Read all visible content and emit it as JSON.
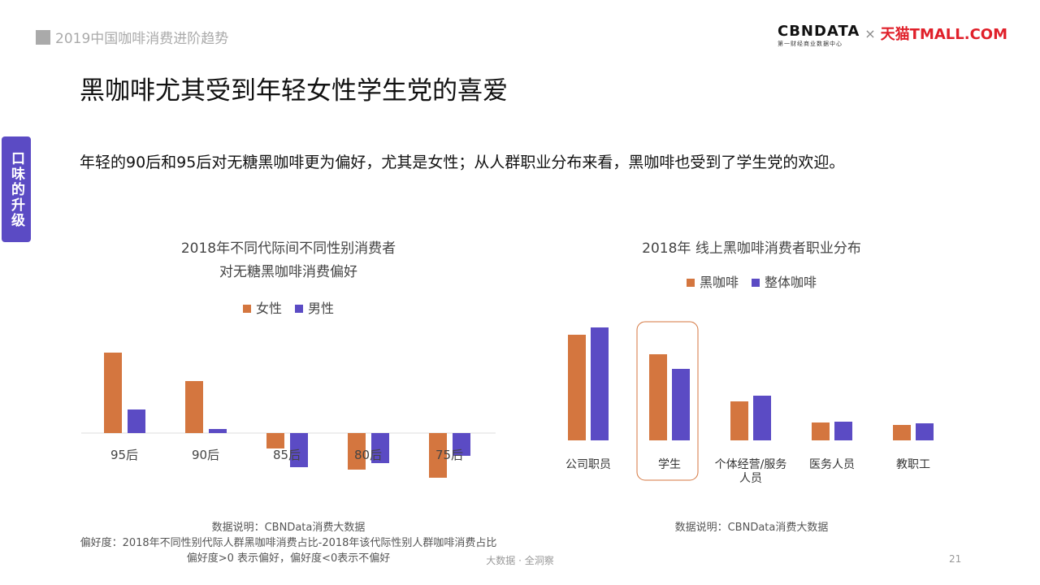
{
  "header": {
    "section": "2019中国咖啡消费进阶趋势",
    "logo_cbn": "CBNDATA",
    "logo_cbn_sub": "第一财经商业数据中心",
    "logo_x": "×",
    "logo_tmall": "天猫TMALL.COM"
  },
  "side_tab": "口味的升级",
  "title": "黑咖啡尤其受到年轻女性学生党的喜爱",
  "subtitle": "年轻的90后和95后对无糖黑咖啡更为偏好，尤其是女性；从人群职业分布来看，黑咖啡也受到了学生党的欢迎。",
  "colors": {
    "orange": "#D4763F",
    "purple": "#5B4BC4"
  },
  "chart_data": [
    {
      "type": "bar",
      "title": [
        "2018年不同代际间不同性别消费者",
        "对无糖黑咖啡消费偏好"
      ],
      "categories": [
        "95后",
        "90后",
        "85后",
        "80后",
        "75后"
      ],
      "series": [
        {
          "name": "女性",
          "values": [
            99,
            64,
            -19,
            -45,
            -55
          ]
        },
        {
          "name": "男性",
          "values": [
            29,
            5,
            -42,
            -37,
            -28
          ]
        }
      ],
      "legend": "top",
      "grid": false,
      "notes": [
        "数据说明：CBNData消费大数据",
        "偏好度：2018年不同性别代际人群黑咖啡消费占比-2018年该代际性别人群咖啡消费占比",
        "偏好度>0 表示偏好，偏好度<0表示不偏好"
      ]
    },
    {
      "type": "bar",
      "title": [
        "2018年 线上黑咖啡消费者职业分布"
      ],
      "categories": [
        "公司职员",
        "学生",
        "个体经营/服务人员",
        "医务人员",
        "教职工"
      ],
      "series": [
        {
          "name": "黑咖啡",
          "values": [
            130,
            106,
            48,
            22,
            19
          ]
        },
        {
          "name": "整体咖啡",
          "values": [
            139,
            88,
            55,
            23,
            21
          ]
        }
      ],
      "highlight": "学生",
      "legend": "top",
      "grid": false,
      "notes": [
        "数据说明：CBNData消费大数据"
      ]
    }
  ],
  "footer": {
    "text": "大数据 · 全洞察",
    "page": "21"
  }
}
